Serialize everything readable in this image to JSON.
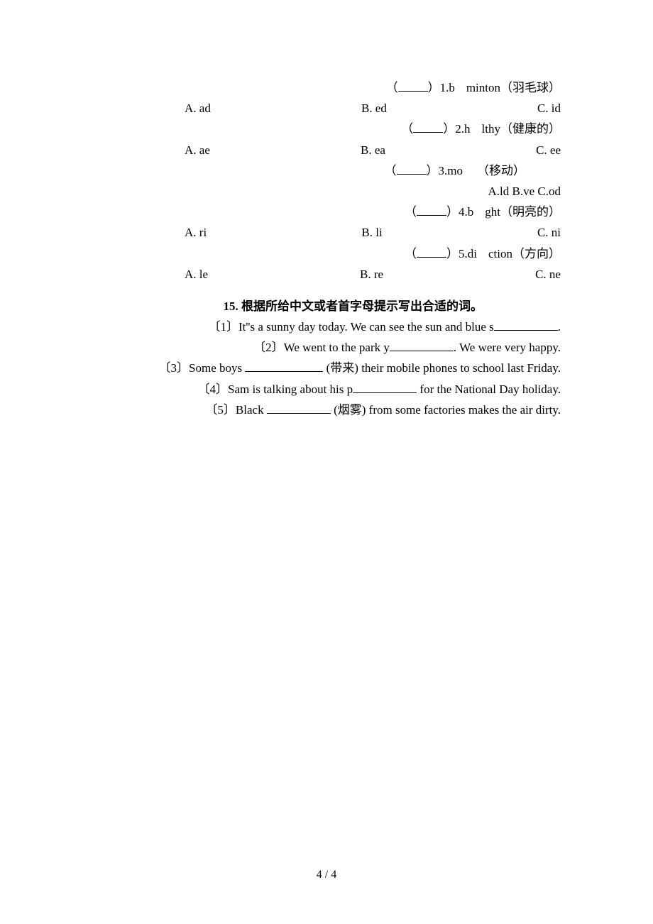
{
  "questions": [
    {
      "prompt_prefix": "（",
      "prompt_suffix": "）1.b",
      "prompt_word": "minton（羽毛球）",
      "opts": {
        "a": "A. ad",
        "b": "B. ed",
        "c": "C. id"
      },
      "inline": false
    },
    {
      "prompt_prefix": "（",
      "prompt_suffix": "）2.h",
      "prompt_word": "lthy（健康的）",
      "opts": {
        "a": "A. ae",
        "b": "B. ea",
        "c": "C. ee"
      },
      "inline": false
    },
    {
      "prompt_prefix": "（",
      "prompt_suffix": "）3.mo",
      "prompt_word": "（移动）",
      "inline_opts": "A.ld B.ve C.od",
      "inline": true
    },
    {
      "prompt_prefix": "（",
      "prompt_suffix": "）4.b",
      "prompt_word": "ght（明亮的）",
      "opts": {
        "a": "A. ri",
        "b": "B. li",
        "c": "C. ni"
      },
      "inline": false
    },
    {
      "prompt_prefix": "（",
      "prompt_suffix": "）5.di",
      "prompt_word": "ction（方向）",
      "opts": {
        "a": "A. le",
        "b": "B. re",
        "c": "C. ne"
      },
      "inline": false
    }
  ],
  "section15": {
    "title": "15.  根据所给中文或者首字母提示写出合适的词。",
    "items": [
      {
        "pre": "〔1〕It''s a sunny day today. We can see the sun and blue s",
        "post": "."
      },
      {
        "pre": "〔2〕We went to the park y",
        "post": ". We were very happy."
      },
      {
        "pre": "〔3〕Some boys ",
        "mid": " (带来) their mobile phones to school last Friday."
      },
      {
        "pre": "〔4〕Sam is talking about his p",
        "post": " for the National Day holiday."
      },
      {
        "pre": "〔5〕Black ",
        "mid": " (烟雾) from some factories makes the air dirty."
      }
    ]
  },
  "page_number": "4 / 4"
}
